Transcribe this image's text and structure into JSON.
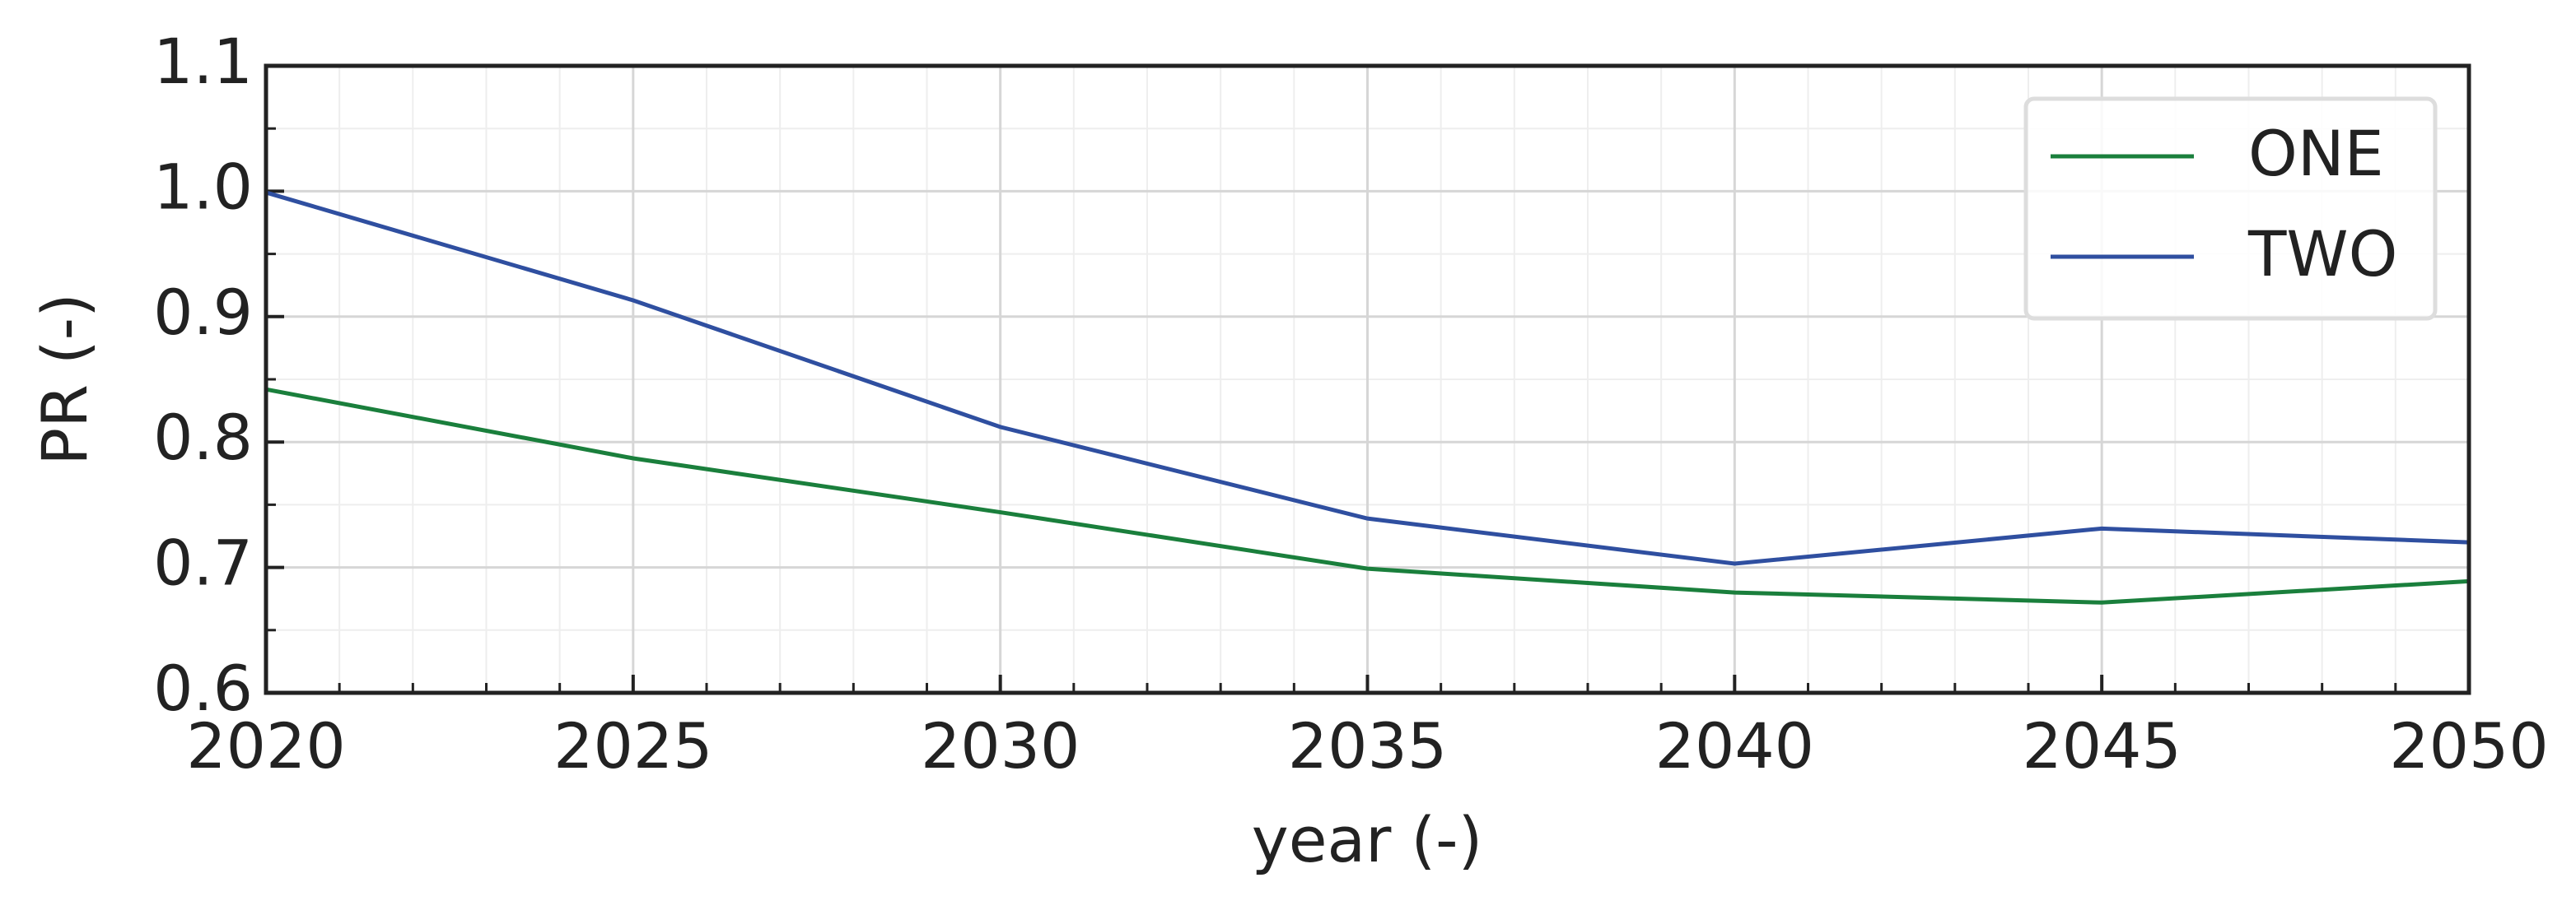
{
  "chart_data": {
    "type": "line",
    "xlabel": "year (-)",
    "ylabel": "PR (-)",
    "x": [
      2020,
      2025,
      2030,
      2035,
      2040,
      2045,
      2050
    ],
    "series": [
      {
        "name": "ONE",
        "color": "#1a7f3c",
        "values": [
          0.842,
          0.787,
          0.744,
          0.699,
          0.68,
          0.672,
          0.689
        ]
      },
      {
        "name": "TWO",
        "color": "#2f4fa0",
        "values": [
          0.999,
          0.913,
          0.812,
          0.739,
          0.703,
          0.731,
          0.72
        ]
      }
    ],
    "xlim": [
      2020,
      2050
    ],
    "xticks": [
      2020,
      2025,
      2030,
      2035,
      2040,
      2045,
      2050
    ],
    "ylim": [
      0.6,
      1.1
    ],
    "yticks": [
      0.6,
      0.7,
      0.8,
      0.9,
      {
        "value": 1.0,
        "label": "1.0"
      },
      1.1
    ],
    "grid": true,
    "minor_grid": true,
    "legend": "upper right"
  }
}
